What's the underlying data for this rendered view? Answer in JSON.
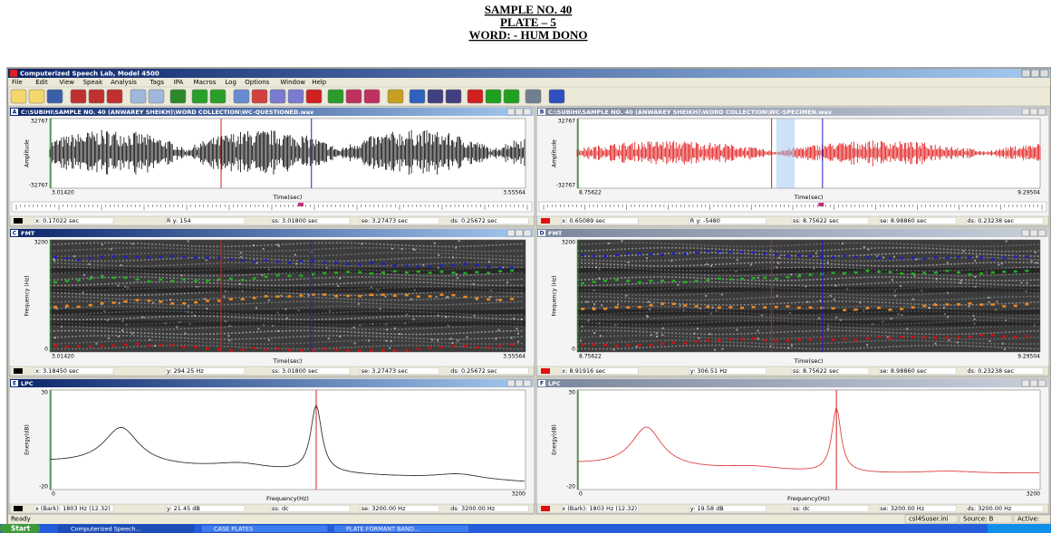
{
  "header": {
    "lines": [
      "SAMPLE NO. 40",
      "PLATE – 5",
      "WORD: - HUM DONO"
    ]
  },
  "window": {
    "title": "Computerized Speech Lab, Model 4500",
    "menu": [
      "File",
      "Edit",
      "View",
      "Speak",
      "Analysis",
      "Tags",
      "IPA",
      "Macros",
      "Log",
      "Options",
      "Window",
      "Help"
    ]
  },
  "panels": [
    {
      "id": "A",
      "title": "C:\\SUBIHI\\SAMPLE NO. 40 (ANWAREY SHEIKH)\\WORD COLLECTION\\WC-QUESTIONED.wav",
      "y_top": "32767",
      "y_bottom": "-32767",
      "y_title": "Amplitude",
      "x_left": "3.01420",
      "x_right": "3.55564",
      "x_title": "Time(sec)",
      "status": [
        "x: 0.17022 sec",
        "R  y: 154",
        "ss: 3.01800 sec",
        "se: 3.27473 sec",
        "ds: 0.25672 sec"
      ]
    },
    {
      "id": "B",
      "title": "C:\\SUBIHI\\SAMPLE NO. 40 (ANWAREY SHEIKH)\\WORD COLLECTION\\WC-SPECIMEN.wav",
      "y_top": "32767",
      "y_bottom": "-32767",
      "y_title": "Amplitude",
      "x_left": "8.75622",
      "x_right": "9.29504",
      "x_title": "Time(sec)",
      "status": [
        "x: 0.65089 sec",
        "R  y: -5480",
        "ss: 8.75622 sec",
        "se: 8.98860 sec",
        "ds: 0.23238 sec"
      ]
    },
    {
      "id": "C",
      "title": "FMT",
      "y_top": "3200",
      "y_bottom": "0",
      "y_title": "Frequency (Hz)",
      "x_left": "3.01420",
      "x_right": "3.55564",
      "x_title": "Time(sec)",
      "status": [
        "x: 3.18450 sec",
        "y: 294.25 Hz",
        "ss: 3.01800 sec",
        "se: 3.27473 sec",
        "ds: 0.25672 sec"
      ]
    },
    {
      "id": "D",
      "title": "FMT",
      "y_top": "3200",
      "y_bottom": "0",
      "y_title": "Frequency (Hz)",
      "x_left": "8.75622",
      "x_right": "9.29504",
      "x_title": "Time(sec)",
      "status": [
        "x: 8.91916 sec",
        "y: 306.51 Hz",
        "ss: 8.75622 sec",
        "se: 8.98860 sec",
        "ds: 0.23238 sec"
      ]
    },
    {
      "id": "E",
      "title": "LPC",
      "y_top": "30",
      "y_bottom": "-20",
      "y_title": "Energy(dB)",
      "x_left": "0",
      "x_right": "3200",
      "x_title": "Frequency(Hz)",
      "status": [
        "x (Bark): 1803 Hz (12.32)",
        "y: 21.45 dB",
        "ss: dc",
        "se: 3200.00 Hz",
        "ds: 3200.00 Hz"
      ]
    },
    {
      "id": "F",
      "title": "LPC",
      "y_top": "30",
      "y_bottom": "-20",
      "y_title": "Energy(dB)",
      "x_left": "0",
      "x_right": "3200",
      "x_title": "Frequency(Hz)",
      "status": [
        "x (Bark): 1803 Hz (12.32)",
        "y: 19.58 dB",
        "ss: dc",
        "se: 3200.00 Hz",
        "ds: 3200.00 Hz"
      ]
    }
  ],
  "statusbar": {
    "left": "Ready",
    "right": [
      "csl4Suser.ini",
      "Source: B",
      "Active:"
    ]
  },
  "taskbar": {
    "start": "Start",
    "tasks": [
      "Computerized Speech...",
      "CASE PLATES",
      "PLATE FORMANT BAND..."
    ]
  }
}
